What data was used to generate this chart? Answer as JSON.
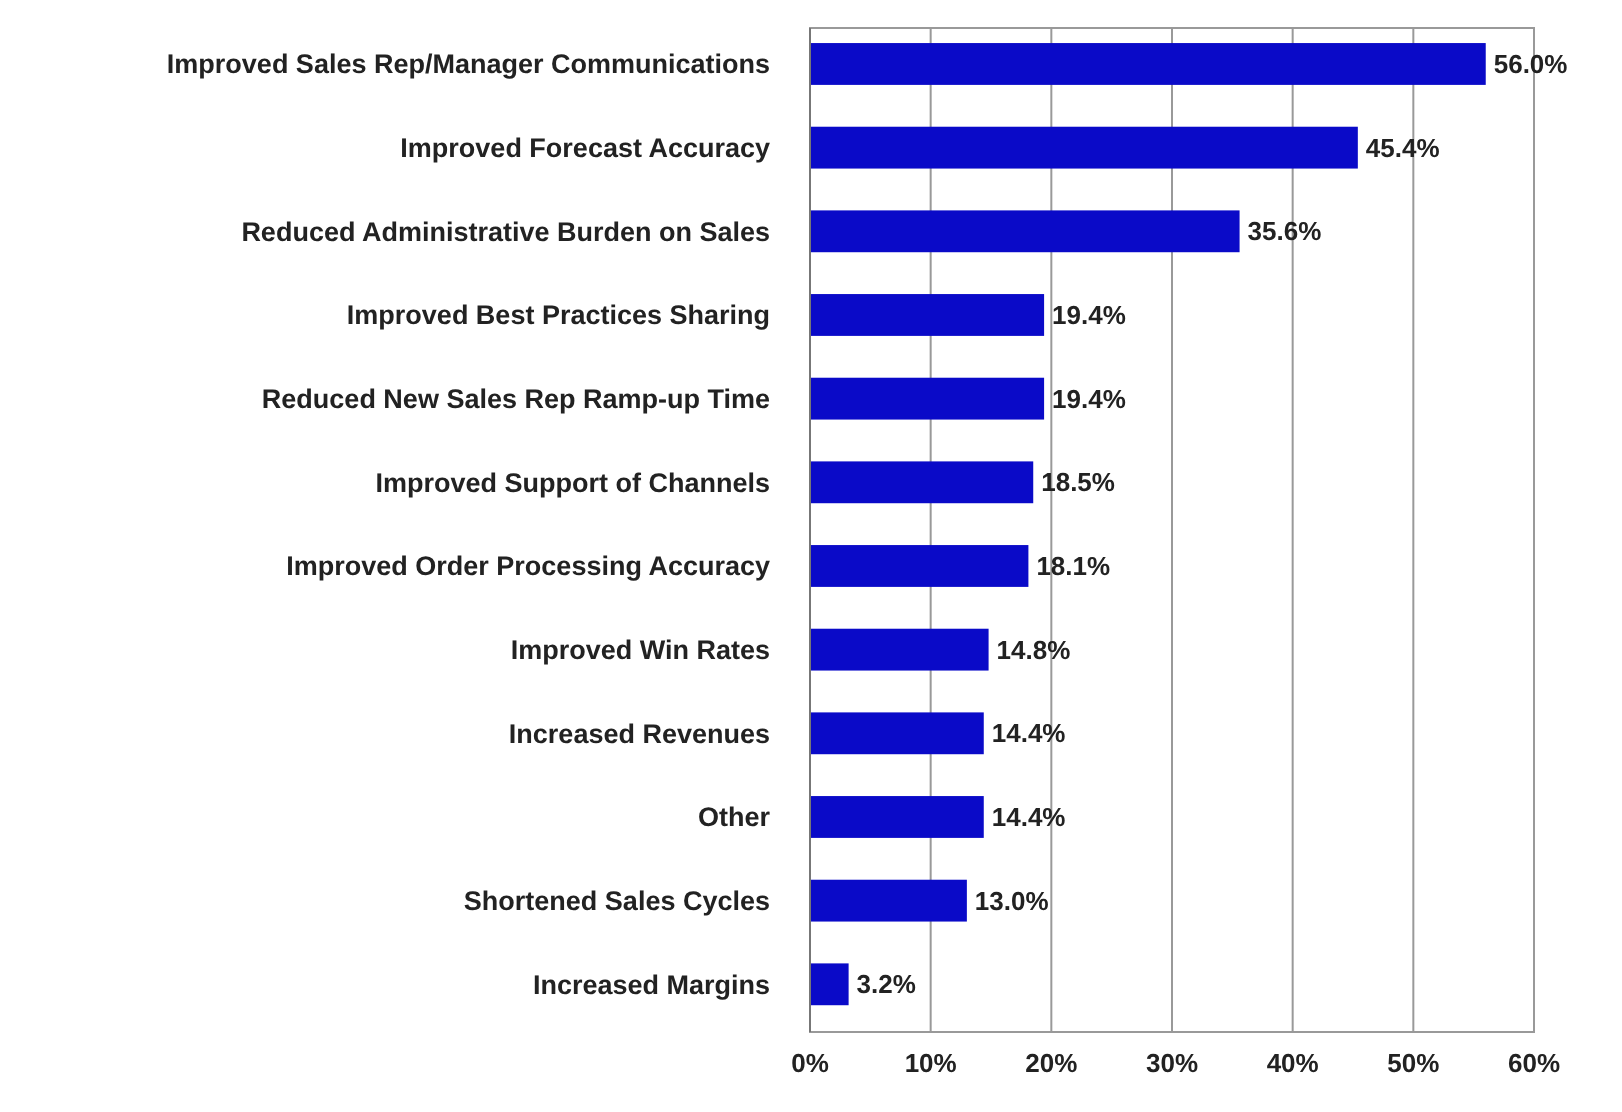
{
  "chart_data": {
    "type": "bar",
    "orientation": "horizontal",
    "categories": [
      "Improved Sales Rep/Manager Communications",
      "Improved Forecast Accuracy",
      "Reduced Administrative Burden on Sales",
      "Improved Best Practices Sharing",
      "Reduced New Sales Rep Ramp-up Time",
      "Improved Support of Channels",
      "Improved Order Processing Accuracy",
      "Improved Win Rates",
      "Increased Revenues",
      "Other",
      "Shortened Sales Cycles",
      "Increased Margins"
    ],
    "values": [
      56.0,
      45.4,
      35.6,
      19.4,
      19.4,
      18.5,
      18.1,
      14.8,
      14.4,
      14.4,
      13.0,
      3.2
    ],
    "value_labels": [
      "56.0%",
      "45.4%",
      "35.6%",
      "19.4%",
      "19.4%",
      "18.5%",
      "18.1%",
      "14.8%",
      "14.4%",
      "14.4%",
      "13.0%",
      "3.2%"
    ],
    "color": "#0a0ac8",
    "xlim": [
      0,
      60
    ],
    "xticks": [
      {
        "value": 0,
        "label": "0%"
      },
      {
        "value": 10,
        "label": "10%"
      },
      {
        "value": 20,
        "label": "20%"
      },
      {
        "value": 30,
        "label": "30%"
      },
      {
        "value": 40,
        "label": "40%"
      },
      {
        "value": 50,
        "label": "50%"
      },
      {
        "value": 60,
        "label": "60%"
      }
    ],
    "grid": "x"
  }
}
